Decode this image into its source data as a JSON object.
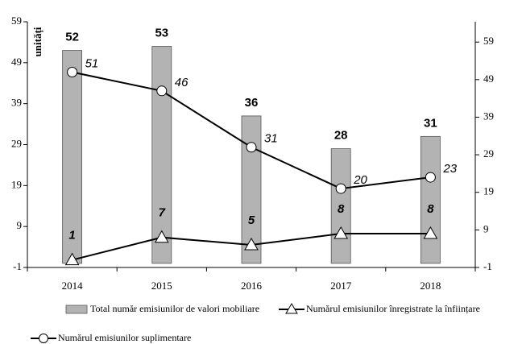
{
  "chart_data": {
    "type": "bar-line",
    "y_label": "unități",
    "categories": [
      "2014",
      "2015",
      "2016",
      "2017",
      "2018"
    ],
    "series": [
      {
        "name": "Total număr emisiunilor de valori mobiliare",
        "type": "bar",
        "color": "#b3b3b3",
        "values": [
          52,
          53,
          36,
          28,
          31
        ]
      },
      {
        "name": "Numărul emisiunilor înregistrate la înființare",
        "type": "line",
        "marker": "triangle",
        "axis": "y2",
        "color": "#000000",
        "values": [
          1,
          7,
          5,
          8,
          8
        ]
      },
      {
        "name": "Numărul emisiunilor suplimentare",
        "type": "line",
        "marker": "circle",
        "axis": "y2",
        "color": "#000000",
        "values": [
          51,
          46,
          31,
          20,
          23
        ]
      }
    ],
    "ylim": [
      -1,
      59
    ],
    "yticks": [
      -1,
      9,
      19,
      29,
      39,
      49,
      59
    ],
    "y2lim": [
      -1,
      64.4
    ],
    "y2ticks": [
      -1,
      9,
      19,
      29,
      39,
      49,
      59
    ]
  }
}
